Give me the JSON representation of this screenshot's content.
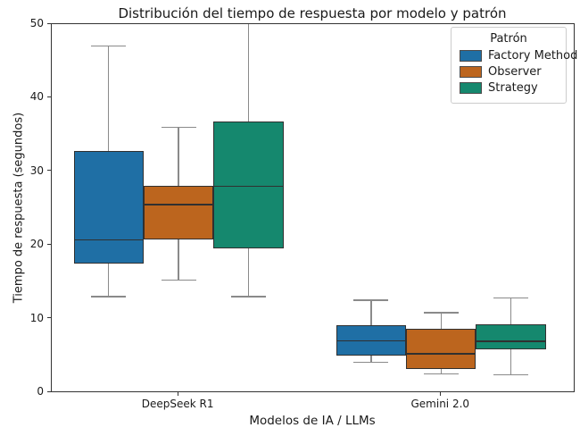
{
  "chart_data": {
    "type": "boxplot",
    "title": "Distribución del tiempo de respuesta por modelo y patrón",
    "xlabel": "Modelos de IA / LLMs",
    "ylabel": "Tiempo de respuesta (segundos)",
    "ylim": [
      0,
      50
    ],
    "y_ticks": [
      0,
      10,
      20,
      30,
      40,
      50
    ],
    "categories": [
      "DeepSeek R1",
      "Gemini 2.0"
    ],
    "legend": {
      "title": "Patrón",
      "entries": [
        "Factory Method",
        "Observer",
        "Strategy"
      ],
      "position": "upper right"
    },
    "grid": "off",
    "series": [
      {
        "name": "Factory Method",
        "color": "#1f6fa5",
        "boxes": [
          {
            "category": "DeepSeek R1",
            "whisker_low": 13.0,
            "q1": 17.5,
            "median": 20.7,
            "q3": 32.8,
            "whisker_high": 47.0
          },
          {
            "category": "Gemini 2.0",
            "whisker_low": 4.1,
            "q1": 5.0,
            "median": 7.0,
            "q3": 9.1,
            "whisker_high": 12.5
          }
        ]
      },
      {
        "name": "Observer",
        "color": "#bc651e",
        "boxes": [
          {
            "category": "DeepSeek R1",
            "whisker_low": 15.2,
            "q1": 20.8,
            "median": 25.5,
            "q3": 28.0,
            "whisker_high": 36.0
          },
          {
            "category": "Gemini 2.0",
            "whisker_low": 2.5,
            "q1": 3.2,
            "median": 5.2,
            "q3": 8.6,
            "whisker_high": 10.8
          }
        ]
      },
      {
        "name": "Strategy",
        "color": "#15886e",
        "boxes": [
          {
            "category": "DeepSeek R1",
            "whisker_low": 13.0,
            "q1": 19.5,
            "median": 28.0,
            "q3": 36.8,
            "whisker_high": 50.0,
            "clipped_top": true
          },
          {
            "category": "Gemini 2.0",
            "whisker_low": 2.4,
            "q1": 5.8,
            "median": 6.9,
            "q3": 9.2,
            "whisker_high": 12.8
          }
        ]
      }
    ],
    "style_colors": {
      "box_edge": "#303030",
      "median": "#303030",
      "whisker": "#8a8a8a",
      "spine": "#333333",
      "text": "#1a1a1a",
      "legend_border": "#cccccc"
    }
  }
}
